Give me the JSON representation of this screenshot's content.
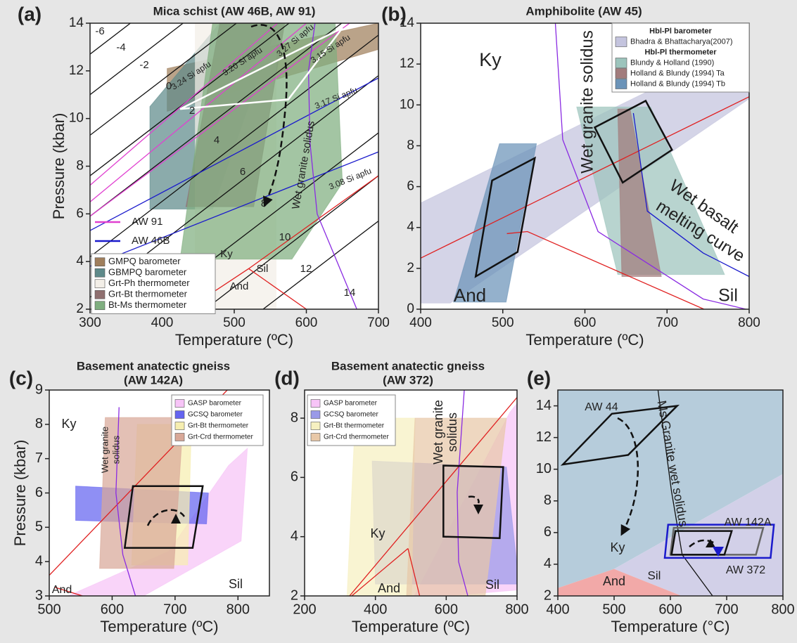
{
  "chart_data": [
    {
      "type": "pt-diagram",
      "panel_label": "(a)",
      "title": "Mica schist (AW 46B, AW 91)",
      "xlabel": "Temperature (ºC)",
      "ylabel": "Pressure (kbar)",
      "xlim": [
        300,
        700
      ],
      "ylim": [
        2,
        14
      ],
      "xticks": [
        300,
        400,
        500,
        600,
        700
      ],
      "yticks": [
        2,
        4,
        6,
        8,
        10,
        12,
        14
      ],
      "legend": "lower left",
      "series": [
        {
          "name": "GMPQ barometer",
          "color": "#a07f5c",
          "x": [
            407,
            700,
            700,
            407
          ],
          "y": [
            12.1,
            14,
            12.9,
            10.3
          ]
        },
        {
          "name": "GBMPQ barometer",
          "color": "#5e8a8a",
          "x": [
            383,
            480,
            560,
            470,
            383
          ],
          "y": [
            10.5,
            14,
            14,
            6.2,
            6.2
          ]
        },
        {
          "name": "Grt-Ph thermometer",
          "color": "#f3efe8",
          "x": [
            446,
            558,
            558,
            446
          ],
          "y": [
            2,
            2,
            14,
            14
          ]
        },
        {
          "name": "Grt-Bt thermometer",
          "color": "#8f7070",
          "x": [
            433,
            527,
            570,
            480
          ],
          "y": [
            6.3,
            6.3,
            14,
            14
          ]
        },
        {
          "name": "Bt-Ms thermometer",
          "color": "#7fae7f",
          "x": [
            425,
            580,
            650,
            640,
            470
          ],
          "y": [
            4.1,
            4.1,
            7.3,
            14,
            14
          ]
        }
      ],
      "line_legend": [
        {
          "name": "AW 91",
          "color": "#e040d0"
        },
        {
          "name": "AW 46B",
          "color": "#1a1acc"
        }
      ],
      "lines": [
        {
          "color": "#111111",
          "x": [
            300,
            356
          ],
          "y": [
            12.7,
            14
          ]
        },
        {
          "color": "#111111",
          "x": [
            300,
            429
          ],
          "y": [
            11,
            14
          ]
        },
        {
          "color": "#111111",
          "x": [
            300,
            503
          ],
          "y": [
            9.3,
            14
          ]
        },
        {
          "color": "#111111",
          "x": [
            300,
            576
          ],
          "y": [
            7.6,
            14
          ]
        },
        {
          "color": "#111111",
          "x": [
            300,
            649
          ],
          "y": [
            5.9,
            14
          ]
        },
        {
          "color": "#111111",
          "x": [
            300,
            700
          ],
          "y": [
            4.2,
            13.5
          ]
        },
        {
          "color": "#111111",
          "x": [
            300,
            700
          ],
          "y": [
            2.5,
            11.8
          ]
        },
        {
          "color": "#111111",
          "x": [
            380,
            700
          ],
          "y": [
            2,
            9.4
          ]
        },
        {
          "color": "#111111",
          "x": [
            460,
            700
          ],
          "y": [
            2,
            7.6
          ]
        },
        {
          "color": "#111111",
          "x": [
            540,
            700
          ],
          "y": [
            2,
            5.7
          ]
        },
        {
          "color": "#e040d0",
          "x": [
            300,
            660
          ],
          "y": [
            5.9,
            14
          ]
        },
        {
          "color": "#e040d0",
          "x": [
            300,
            600
          ],
          "y": [
            6.5,
            14
          ]
        },
        {
          "color": "#e040d0",
          "x": [
            300,
            560
          ],
          "y": [
            7.2,
            14
          ]
        },
        {
          "color": "#1a1acc",
          "x": [
            300,
            700
          ],
          "y": [
            3.8,
            8.6
          ]
        },
        {
          "color": "#1a1acc",
          "x": [
            300,
            700
          ],
          "y": [
            5.3,
            11.7
          ]
        },
        {
          "color": "#e02020",
          "x": [
            435,
            520
          ],
          "y": [
            2,
            3.7
          ]
        },
        {
          "color": "#e02020",
          "x": [
            520,
            700
          ],
          "y": [
            3.7,
            7.6
          ]
        },
        {
          "color": "#e02020",
          "x": [
            520,
            600
          ],
          "y": [
            3.7,
            2
          ]
        },
        {
          "color": "#8a2be2",
          "x": [
            670,
            615,
            605,
            603,
            612
          ],
          "y": [
            2,
            6,
            9,
            12,
            14
          ]
        }
      ],
      "outlines": [
        {
          "color": "#ffffff",
          "x": [
            425,
            650,
            575
          ],
          "y": [
            10.4,
            13.8,
            10.8
          ]
        }
      ],
      "annotations": [
        "-6",
        "-4",
        "-2",
        "0",
        "2",
        "4",
        "6",
        "8",
        "10",
        "12",
        "14",
        "3.24 Si apfu",
        "3.20 Si apfu",
        "3.27 Si apfu",
        "3.15 Si apfu",
        "3.17 Si apfu",
        "3.08 Si apfu",
        "Wet granite solidus",
        "Ky",
        "Sil",
        "And"
      ]
    },
    {
      "type": "pt-diagram",
      "panel_label": "(b)",
      "title": "Amphibolite (AW 45)",
      "xlabel": "Temperature (ºC)",
      "xlim": [
        400,
        800
      ],
      "ylim": [
        0,
        14
      ],
      "xticks": [
        400,
        500,
        600,
        700,
        800
      ],
      "yticks": [
        0,
        2,
        4,
        6,
        8,
        10,
        12,
        14
      ],
      "legend": "upper right",
      "legend_headings": [
        "Hbl-Pl barometer",
        "Hbl-Pl thermometer"
      ],
      "series": [
        {
          "name": "Bhadra & Bhattacharya(2007)",
          "color": "#c4c4de",
          "x": [
            400,
            800,
            800,
            436,
            400
          ],
          "y": [
            5.2,
            13.1,
            10.3,
            0.3,
            0.3
          ]
        },
        {
          "name": "Blundy & Holland (1990)",
          "color": "#9cc4bc",
          "x": [
            590,
            680,
            770,
            640
          ],
          "y": [
            9.9,
            9.9,
            1.7,
            1.7
          ]
        },
        {
          "name": "Holland & Blundy (1994) Ta",
          "color": "#a27c7c",
          "x": [
            640,
            655,
            693,
            645
          ],
          "y": [
            9.8,
            9.8,
            1.6,
            1.6
          ]
        },
        {
          "name": "Holland & Blundy (1994) Tb",
          "color": "#6b93b8",
          "x": [
            496,
            541,
            504,
            440
          ],
          "y": [
            8.1,
            8.1,
            0.35,
            0.35
          ]
        }
      ],
      "lines": [
        {
          "color": "#e02020",
          "x": [
            400,
            800
          ],
          "y": [
            2.5,
            10.4
          ]
        },
        {
          "color": "#e02020",
          "x": [
            505,
            530,
            745
          ],
          "y": [
            3.7,
            3.8,
            0
          ]
        },
        {
          "color": "#8a2be2",
          "x": [
            564,
            573,
            616,
            744,
            796
          ],
          "y": [
            14,
            8.3,
            3.8,
            0.5,
            0
          ]
        },
        {
          "color": "#1a1acc",
          "x": [
            659,
            676,
            744,
            800
          ],
          "y": [
            9.6,
            4.8,
            2.75,
            1.6
          ]
        }
      ],
      "outlines": [
        {
          "color": "#111111",
          "x": [
            612,
            674,
            706,
            646
          ],
          "y": [
            8.9,
            10.2,
            7.8,
            6.2
          ]
        },
        {
          "color": "#111111",
          "x": [
            467,
            487,
            539,
            518
          ],
          "y": [
            1.6,
            6.3,
            7.4,
            2.8
          ]
        }
      ],
      "annotations": [
        "Ky",
        "And",
        "Sil",
        "Wet granite solidus",
        "Wet basalt",
        "melting curve"
      ]
    },
    {
      "type": "pt-diagram",
      "panel_label": "(c)",
      "title": "Basement anatectic gneiss",
      "subtitle": "(AW 142A)",
      "xlabel": "Temperature (ºC)",
      "ylabel": "Pressure (kbar)",
      "xlim": [
        500,
        850
      ],
      "ylim": [
        3,
        9
      ],
      "xticks": [
        500,
        600,
        700,
        800
      ],
      "yticks": [
        3,
        4,
        5,
        6,
        7,
        8,
        9
      ],
      "legend": "upper right",
      "series": [
        {
          "name": "GASP barometer",
          "color": "#f7c4f7",
          "x": [
            530,
            690,
            785,
            815,
            805,
            650
          ],
          "y": [
            3,
            4.3,
            6.8,
            7.3,
            4.6,
            3
          ]
        },
        {
          "name": "GCSQ barometer",
          "color": "#6464f0",
          "x": [
            542,
            753,
            750,
            542
          ],
          "y": [
            6.2,
            6.0,
            5.1,
            5.2
          ]
        },
        {
          "name": "Grt-Bt thermometer",
          "color": "#f6eeb0",
          "x": [
            640,
            726,
            720,
            631
          ],
          "y": [
            8.0,
            8.0,
            3.9,
            3.9
          ]
        },
        {
          "name": "Grt-Crd thermometer",
          "color": "#d8a898",
          "x": [
            589,
            713,
            698,
            580
          ],
          "y": [
            8.2,
            8.2,
            3.8,
            3.8
          ]
        }
      ],
      "lines": [
        {
          "color": "#e02020",
          "x": [
            500,
            783
          ],
          "y": [
            3.6,
            9
          ]
        },
        {
          "color": "#e02020",
          "x": [
            509,
            553
          ],
          "y": [
            3.25,
            3
          ]
        },
        {
          "color": "#8a2be2",
          "x": [
            611,
            606,
            617,
            637
          ],
          "y": [
            8.5,
            6.0,
            4.2,
            3
          ]
        }
      ],
      "outlines": [
        {
          "color": "#111111",
          "x": [
            633,
            744,
            728,
            620
          ],
          "y": [
            6.2,
            6.2,
            4.4,
            4.4
          ]
        }
      ],
      "annotations": [
        "Ky",
        "Wet granite",
        "solidus",
        "And",
        "Sil"
      ]
    },
    {
      "type": "pt-diagram",
      "panel_label": "(d)",
      "title": "Basement anatectic gneiss",
      "subtitle": "(AW 372)",
      "xlabel": "Temperature (ºC)",
      "xlim": [
        200,
        800
      ],
      "ylim": [
        2,
        8.95
      ],
      "xticks": [
        200,
        400,
        600,
        800
      ],
      "yticks": [
        2,
        4,
        6,
        8
      ],
      "legend": "upper left",
      "series": [
        {
          "name": "GASP barometer",
          "color": "#f7c4f7",
          "x": [
            510,
            780,
            800,
            800,
            600
          ],
          "y": [
            2,
            8.2,
            8.5,
            2.2,
            2
          ]
        },
        {
          "name": "GCSQ barometer",
          "color": "#9a9ae8",
          "x": [
            391,
            770,
            800,
            800,
            400
          ],
          "y": [
            6.55,
            6.35,
            3,
            2.4,
            2.4
          ]
        },
        {
          "name": "Grt-Bt thermometer",
          "color": "#f6f0c0",
          "x": [
            343,
            512,
            502,
            320
          ],
          "y": [
            8.0,
            8.0,
            2,
            2
          ]
        },
        {
          "name": "Grt-Crd thermometer",
          "color": "#e8c8a8",
          "x": [
            512,
            770,
            710,
            488
          ],
          "y": [
            8,
            8,
            2,
            2
          ]
        }
      ],
      "lines": [
        {
          "color": "#e02020",
          "x": [
            327,
            800
          ],
          "y": [
            2,
            8.7
          ]
        },
        {
          "color": "#e02020",
          "x": [
            492,
            333
          ],
          "y": [
            3.6,
            2
          ]
        },
        {
          "color": "#e02020",
          "x": [
            492,
            525
          ],
          "y": [
            3.6,
            2
          ]
        },
        {
          "color": "#8a2be2",
          "x": [
            651,
            631,
            635,
            661
          ],
          "y": [
            8.95,
            5.5,
            3.15,
            2
          ]
        }
      ],
      "outlines": [
        {
          "color": "#111111",
          "x": [
            592,
            761,
            751,
            592
          ],
          "y": [
            6.4,
            6.35,
            3.95,
            4.0
          ]
        }
      ],
      "annotations": [
        "Ky",
        "And",
        "Sil",
        "Wet granite",
        "solidus"
      ]
    },
    {
      "type": "pt-diagram",
      "panel_label": "(e)",
      "xlabel": "Temperature (°C)",
      "xlim": [
        400,
        800
      ],
      "ylim": [
        2,
        15
      ],
      "xticks": [
        400,
        500,
        600,
        700,
        800
      ],
      "yticks": [
        2,
        4,
        6,
        8,
        10,
        12,
        14
      ],
      "regions": [
        {
          "color": "#b6ccdb",
          "x": [
            400,
            800,
            800,
            500,
            400
          ],
          "y": [
            15,
            15,
            9.7,
            3.7,
            2.5
          ]
        },
        {
          "color": "#d2d0e8",
          "x": [
            500,
            800,
            800,
            620
          ],
          "y": [
            3.7,
            9.7,
            2,
            2
          ]
        },
        {
          "color": "#f2a9a8",
          "x": [
            400,
            500,
            620,
            400
          ],
          "y": [
            2.5,
            3.7,
            2,
            2
          ]
        }
      ],
      "lines": [
        {
          "color": "#111111",
          "x": [
            578,
            602,
            621,
            675
          ],
          "y": [
            15,
            8.6,
            4.6,
            2.0
          ]
        }
      ],
      "outlines": [
        {
          "color": "#111111",
          "x": [
            409,
            496,
            612,
            525
          ],
          "y": [
            10.3,
            13.5,
            14.0,
            10.9
          ]
        },
        {
          "color": "#1a1acc",
          "x": [
            596,
            784,
            778,
            590
          ],
          "y": [
            6.5,
            6.5,
            4.4,
            4.4
          ]
        },
        {
          "color": "#666666",
          "x": [
            606,
            765,
            752,
            600
          ],
          "y": [
            6.3,
            6.3,
            4.6,
            4.6
          ]
        },
        {
          "color": "#111111",
          "x": [
            609,
            709,
            696,
            602
          ],
          "y": [
            6.1,
            6.1,
            4.6,
            4.6
          ]
        }
      ],
      "annotations": [
        "AW 44",
        "Ky",
        "Sil",
        "And",
        "Ms Granite wet solidus",
        "AW 142A",
        "AW 372"
      ]
    }
  ]
}
